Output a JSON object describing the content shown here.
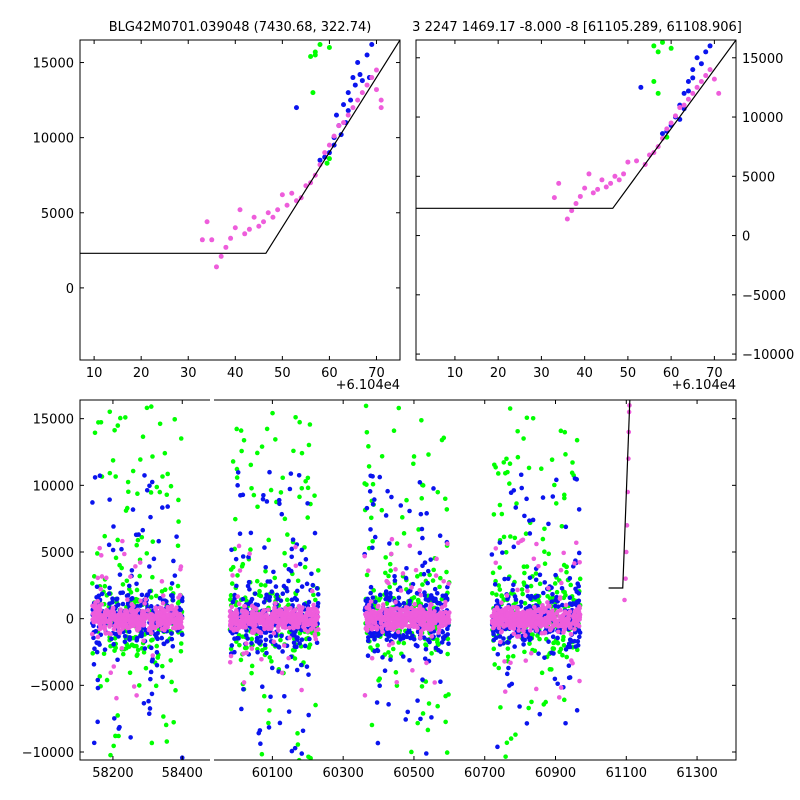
{
  "title_left": "BLG42M0701.039048 (7430.68, 322.74)",
  "title_right": "3 2247 1469.17 -8.000 -8 [61105.289, 61108.906]",
  "colors": {
    "green": "#00ff00",
    "blue": "#0a14ee",
    "pink": "#ee5ddb",
    "model": "#000000",
    "axis": "#000000"
  },
  "chart_data": [
    {
      "name": "zoom-left",
      "type": "scatter",
      "xlim": [
        7,
        75
      ],
      "ylim": [
        -4800,
        16500
      ],
      "x_offset_label": "+6.104e4",
      "xticks": [
        10,
        20,
        30,
        40,
        50,
        60,
        70
      ],
      "yticks": [
        0,
        5000,
        10000,
        15000
      ],
      "ytick_side": "left",
      "model_line": {
        "x": [
          7,
          46.5,
          75
        ],
        "y": [
          2300,
          2300,
          16500
        ]
      },
      "series": [
        {
          "name": "green",
          "color": "#00ff00",
          "points": [
            [
              56,
              15400
            ],
            [
              57,
              15700
            ],
            [
              58,
              16200
            ],
            [
              60,
              16000
            ],
            [
              56.5,
              13000
            ],
            [
              57,
              15500
            ],
            [
              59.5,
              8300
            ],
            [
              60,
              8600
            ]
          ]
        },
        {
          "name": "blue",
          "color": "#0a14ee",
          "points": [
            [
              53,
              12000
            ],
            [
              58,
              8500
            ],
            [
              59,
              8700
            ],
            [
              60,
              9000
            ],
            [
              61,
              10000
            ],
            [
              61.5,
              11500
            ],
            [
              62,
              10800
            ],
            [
              63,
              12200
            ],
            [
              63.5,
              11000
            ],
            [
              64,
              13000
            ],
            [
              64.5,
              12500
            ],
            [
              65,
              14000
            ],
            [
              65.5,
              13500
            ],
            [
              66,
              15000
            ],
            [
              66.5,
              14200
            ],
            [
              67,
              13800
            ],
            [
              68,
              15500
            ],
            [
              68.5,
              14000
            ],
            [
              69,
              16200
            ],
            [
              64,
              11800
            ],
            [
              62.5,
              10200
            ],
            [
              61,
              9500
            ]
          ]
        },
        {
          "name": "pink",
          "color": "#ee5ddb",
          "points": [
            [
              33,
              3200
            ],
            [
              34,
              4400
            ],
            [
              35,
              3200
            ],
            [
              36,
              1400
            ],
            [
              37,
              2100
            ],
            [
              38,
              2700
            ],
            [
              39,
              3300
            ],
            [
              40,
              4000
            ],
            [
              41,
              5200
            ],
            [
              42,
              3600
            ],
            [
              43,
              3900
            ],
            [
              44,
              4700
            ],
            [
              45,
              4100
            ],
            [
              46,
              4400
            ],
            [
              47,
              5000
            ],
            [
              48,
              4700
            ],
            [
              49,
              5200
            ],
            [
              50,
              6200
            ],
            [
              51,
              5500
            ],
            [
              52,
              6300
            ],
            [
              53,
              5800
            ],
            [
              54,
              6000
            ],
            [
              55,
              6800
            ],
            [
              56,
              7000
            ],
            [
              57,
              7500
            ],
            [
              58,
              8200
            ],
            [
              59,
              9000
            ],
            [
              60,
              9500
            ],
            [
              61,
              10100
            ],
            [
              62,
              10800
            ],
            [
              63,
              11000
            ],
            [
              64,
              11500
            ],
            [
              65,
              12000
            ],
            [
              66,
              12500
            ],
            [
              67,
              13000
            ],
            [
              68,
              13500
            ],
            [
              69,
              14000
            ],
            [
              70,
              13200
            ],
            [
              71,
              12000
            ],
            [
              70,
              14500
            ],
            [
              71,
              12500
            ]
          ]
        }
      ]
    },
    {
      "name": "zoom-right",
      "type": "scatter",
      "xlim": [
        1,
        75
      ],
      "ylim": [
        -10500,
        16500
      ],
      "x_offset_label": "+6.104e4",
      "xticks": [
        10,
        20,
        30,
        40,
        50,
        60,
        70
      ],
      "yticks": [
        -10000,
        -5000,
        0,
        5000,
        10000,
        15000
      ],
      "ytick_side": "right",
      "model_line": {
        "x": [
          1,
          46.5,
          75
        ],
        "y": [
          2300,
          2300,
          16500
        ]
      },
      "series": [
        {
          "name": "green",
          "color": "#00ff00",
          "points": [
            [
              56,
              16000
            ],
            [
              57,
              15500
            ],
            [
              58,
              16300
            ],
            [
              60,
              15800
            ],
            [
              56,
              13000
            ],
            [
              57,
              12000
            ],
            [
              59,
              8300
            ]
          ]
        },
        {
          "name": "blue",
          "color": "#0a14ee",
          "points": [
            [
              53,
              12500
            ],
            [
              58,
              8600
            ],
            [
              59,
              8800
            ],
            [
              60,
              9300
            ],
            [
              61,
              10000
            ],
            [
              62,
              11000
            ],
            [
              63,
              12000
            ],
            [
              64,
              13000
            ],
            [
              65,
              14000
            ],
            [
              66,
              15000
            ],
            [
              67,
              14500
            ],
            [
              68,
              15500
            ],
            [
              69,
              16000
            ],
            [
              62,
              9800
            ],
            [
              63,
              10700
            ],
            [
              64,
              12200
            ],
            [
              65,
              13300
            ]
          ]
        },
        {
          "name": "pink",
          "color": "#ee5ddb",
          "points": [
            [
              33,
              3200
            ],
            [
              34,
              4400
            ],
            [
              36,
              1400
            ],
            [
              37,
              2100
            ],
            [
              38,
              2700
            ],
            [
              39,
              3300
            ],
            [
              40,
              4000
            ],
            [
              41,
              5200
            ],
            [
              42,
              3600
            ],
            [
              43,
              3900
            ],
            [
              44,
              4700
            ],
            [
              45,
              4100
            ],
            [
              46,
              4400
            ],
            [
              47,
              5000
            ],
            [
              48,
              4700
            ],
            [
              49,
              5200
            ],
            [
              50,
              6200
            ],
            [
              52,
              6300
            ],
            [
              54,
              6000
            ],
            [
              55,
              6800
            ],
            [
              56,
              7000
            ],
            [
              57,
              7500
            ],
            [
              58,
              8200
            ],
            [
              59,
              9000
            ],
            [
              60,
              9500
            ],
            [
              61,
              10100
            ],
            [
              62,
              10800
            ],
            [
              63,
              11000
            ],
            [
              64,
              11500
            ],
            [
              65,
              12000
            ],
            [
              66,
              12500
            ],
            [
              67,
              13000
            ],
            [
              68,
              13500
            ],
            [
              69,
              14000
            ],
            [
              70,
              13200
            ],
            [
              71,
              12000
            ]
          ]
        }
      ]
    },
    {
      "name": "full-lightcurve",
      "type": "scatter",
      "ylim": [
        -10600,
        16400
      ],
      "yticks": [
        -10000,
        -5000,
        0,
        5000,
        10000,
        15000
      ],
      "segments": [
        {
          "xlim": [
            58105,
            58480
          ],
          "xticks": [
            58200,
            58400
          ]
        },
        {
          "xlim": [
            59935,
            61410
          ],
          "xticks": [
            60100,
            60300,
            60500,
            60700,
            60900,
            61100,
            61300
          ]
        }
      ],
      "clusters": [
        {
          "x_range": [
            58140,
            58400
          ],
          "seed": 11
        },
        {
          "x_range": [
            59980,
            60230
          ],
          "seed": 23
        },
        {
          "x_range": [
            60360,
            60600
          ],
          "seed": 37
        },
        {
          "x_range": [
            60720,
            60970
          ],
          "seed": 53
        }
      ],
      "model_line": {
        "x": [
          61050,
          61090,
          61110
        ],
        "y": [
          2300,
          2300,
          16400
        ]
      },
      "event_points": [
        [
          61095,
          1400
        ],
        [
          61098,
          3000
        ],
        [
          61100,
          5000
        ],
        [
          61102,
          7000
        ],
        [
          61104,
          9500
        ],
        [
          61106,
          12000
        ],
        [
          61107,
          14000
        ],
        [
          61108,
          15500
        ],
        [
          61109,
          16000
        ]
      ]
    }
  ]
}
